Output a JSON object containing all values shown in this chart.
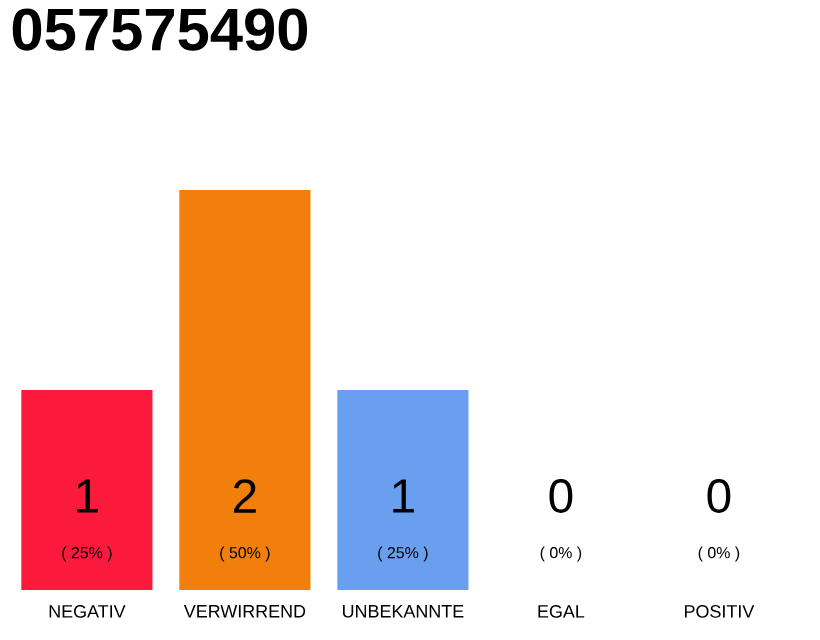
{
  "chart_data": {
    "type": "bar",
    "title": "057575490",
    "categories": [
      "NEGATIV",
      "VERWIRREND",
      "UNBEKANNTE",
      "EGAL",
      "POSITIV"
    ],
    "values": [
      1,
      2,
      1,
      0,
      0
    ],
    "colors": [
      "#fc1a3c",
      "#f27e0c",
      "#6a9ff0",
      "#e0e0e0",
      "#e0e0e0"
    ],
    "ylim": [
      0,
      2
    ],
    "data_labels": true,
    "annotations": [
      {
        "text": "( 25% )",
        "x": "NEGATIV",
        "y": 0
      },
      {
        "text": "( 50% )",
        "x": "VERWIRREND",
        "y": 0
      },
      {
        "text": "( 25% )",
        "x": "UNBEKANNTE",
        "y": 0
      },
      {
        "text": "( 0% )",
        "x": "EGAL",
        "y": 0
      },
      {
        "text": "( 0% )",
        "x": "POSITIV",
        "y": 0
      }
    ],
    "tick_labels": "x"
  }
}
